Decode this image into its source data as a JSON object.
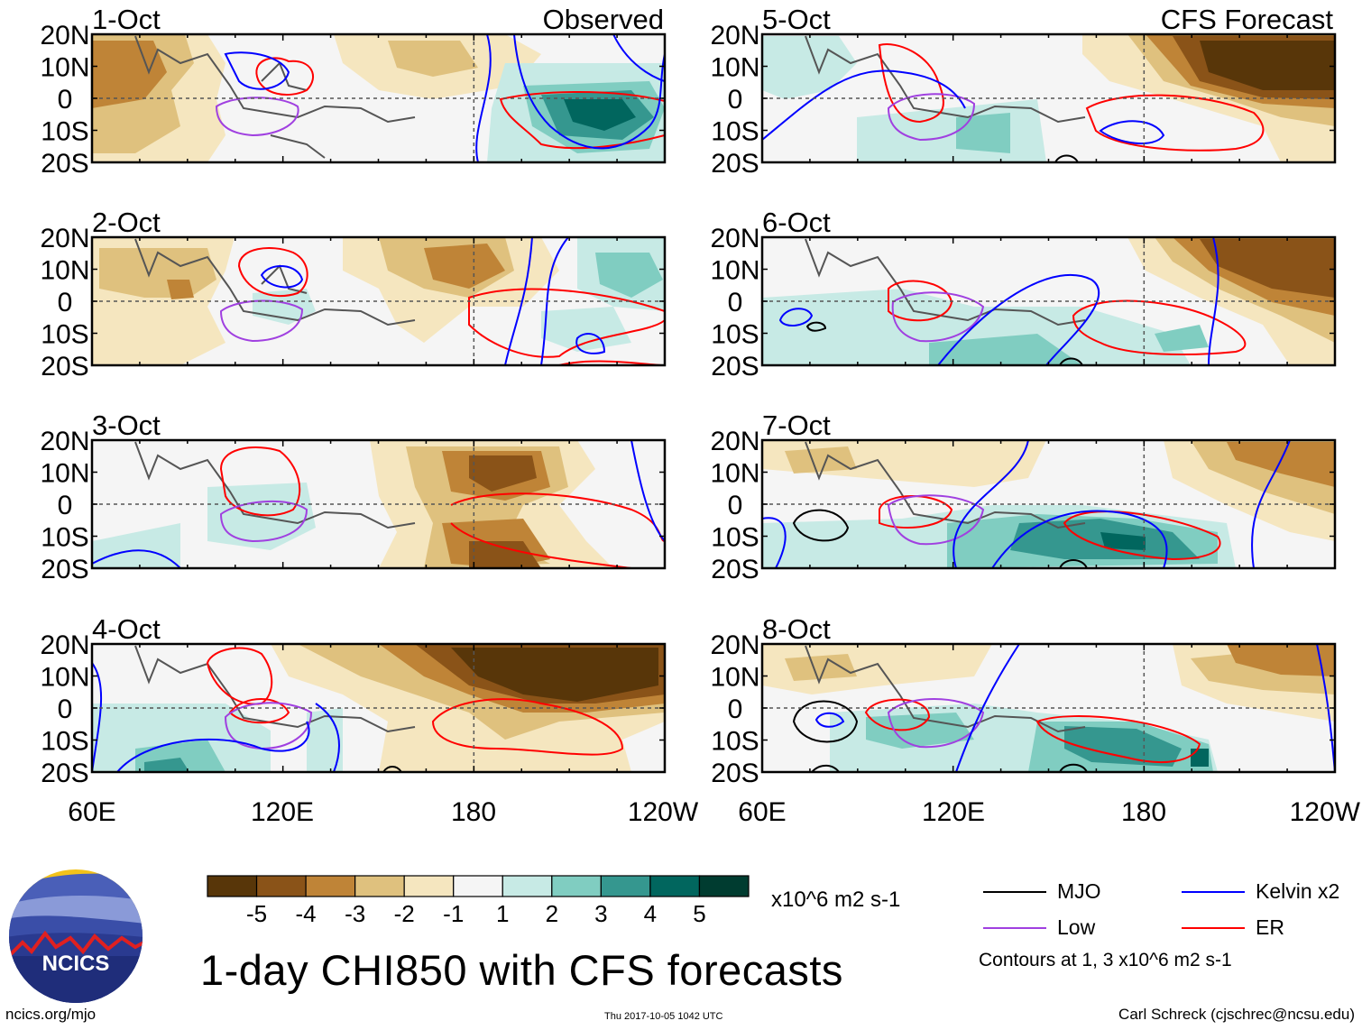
{
  "title": "1-day CHI850 with CFS forecasts",
  "observed_label": "Observed",
  "forecast_label": "CFS Forecast",
  "panels_left": [
    "1-Oct",
    "2-Oct",
    "3-Oct",
    "4-Oct"
  ],
  "panels_right": [
    "5-Oct",
    "6-Oct",
    "7-Oct",
    "8-Oct"
  ],
  "lat_labels": [
    "20N",
    "10N",
    "0",
    "10S",
    "20S"
  ],
  "lon_labels": [
    "60E",
    "120E",
    "180",
    "120W"
  ],
  "colorbar": {
    "colors": [
      "#583609",
      "#8a5318",
      "#bf8437",
      "#dfc17e",
      "#f5e6bf",
      "#f5f5f5",
      "#c7eae5",
      "#80cdc1",
      "#35978f",
      "#01665e",
      "#003c30"
    ],
    "labels": [
      "-5",
      "-4",
      "-3",
      "-2",
      "-1",
      "1",
      "2",
      "3",
      "4",
      "5"
    ],
    "units": "x10^6 m2 s-1"
  },
  "legend": {
    "items": [
      {
        "label": "MJO",
        "color": "#000000"
      },
      {
        "label": "Kelvin x2",
        "color": "#0000ff"
      },
      {
        "label": "Low",
        "color": "#a040e0"
      },
      {
        "label": "ER",
        "color": "#ff0000"
      }
    ],
    "contour_note": "Contours at 1, 3 x10^6 m2 s-1"
  },
  "logo_text": "NCICS",
  "footer": {
    "left": "ncics.org/mjo",
    "middle": "Thu 2017-10-05 1042 UTC",
    "right": "Carl Schreck (cjschrec@ncsu.edu)"
  }
}
